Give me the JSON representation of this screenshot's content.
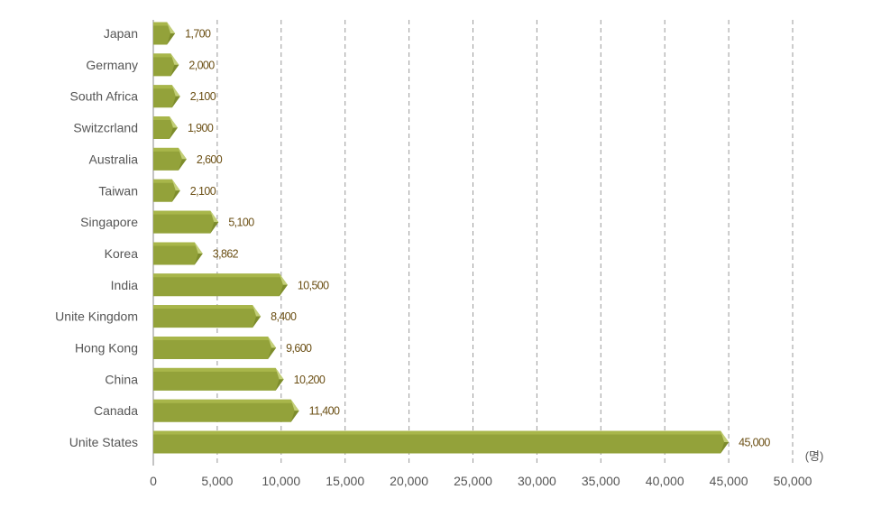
{
  "chart_data": {
    "type": "bar",
    "orientation": "horizontal",
    "categories": [
      "Japan",
      "Germany",
      "South Africa",
      "Switzcrland",
      "Australia",
      "Taiwan",
      "Singapore",
      "Korea",
      "India",
      "Unite Kingdom",
      "Hong Kong",
      "China",
      "Canada",
      "Unite States"
    ],
    "values": [
      1700,
      2000,
      2100,
      1900,
      2600,
      2100,
      5100,
      3862,
      10500,
      8400,
      9600,
      10200,
      11400,
      45000
    ],
    "value_labels": [
      "1,700",
      "2,000",
      "2,100",
      "1,900",
      "2,600",
      "2,100",
      "5,100",
      "3,862",
      "10,500",
      "8,400",
      "9,600",
      "10,200",
      "11,400",
      "45,000"
    ],
    "xlim": [
      0,
      50000
    ],
    "xticks": [
      0,
      5000,
      10000,
      15000,
      20000,
      25000,
      30000,
      35000,
      40000,
      45000,
      50000
    ],
    "xtick_labels": [
      "0",
      "5,000",
      "10,000",
      "15,000",
      "20,000",
      "25,000",
      "30,000",
      "35,000",
      "40,000",
      "45,000",
      "50,000"
    ],
    "unit_label": "(명)",
    "grid": "vertical-dashed",
    "colors": {
      "bar_main": "#93a23a",
      "bar_top": "#a8b64a",
      "bar_tip": "#c3cf78",
      "bar_tip_dark": "#7d8c2c",
      "value_text": "#6b4f14"
    }
  }
}
